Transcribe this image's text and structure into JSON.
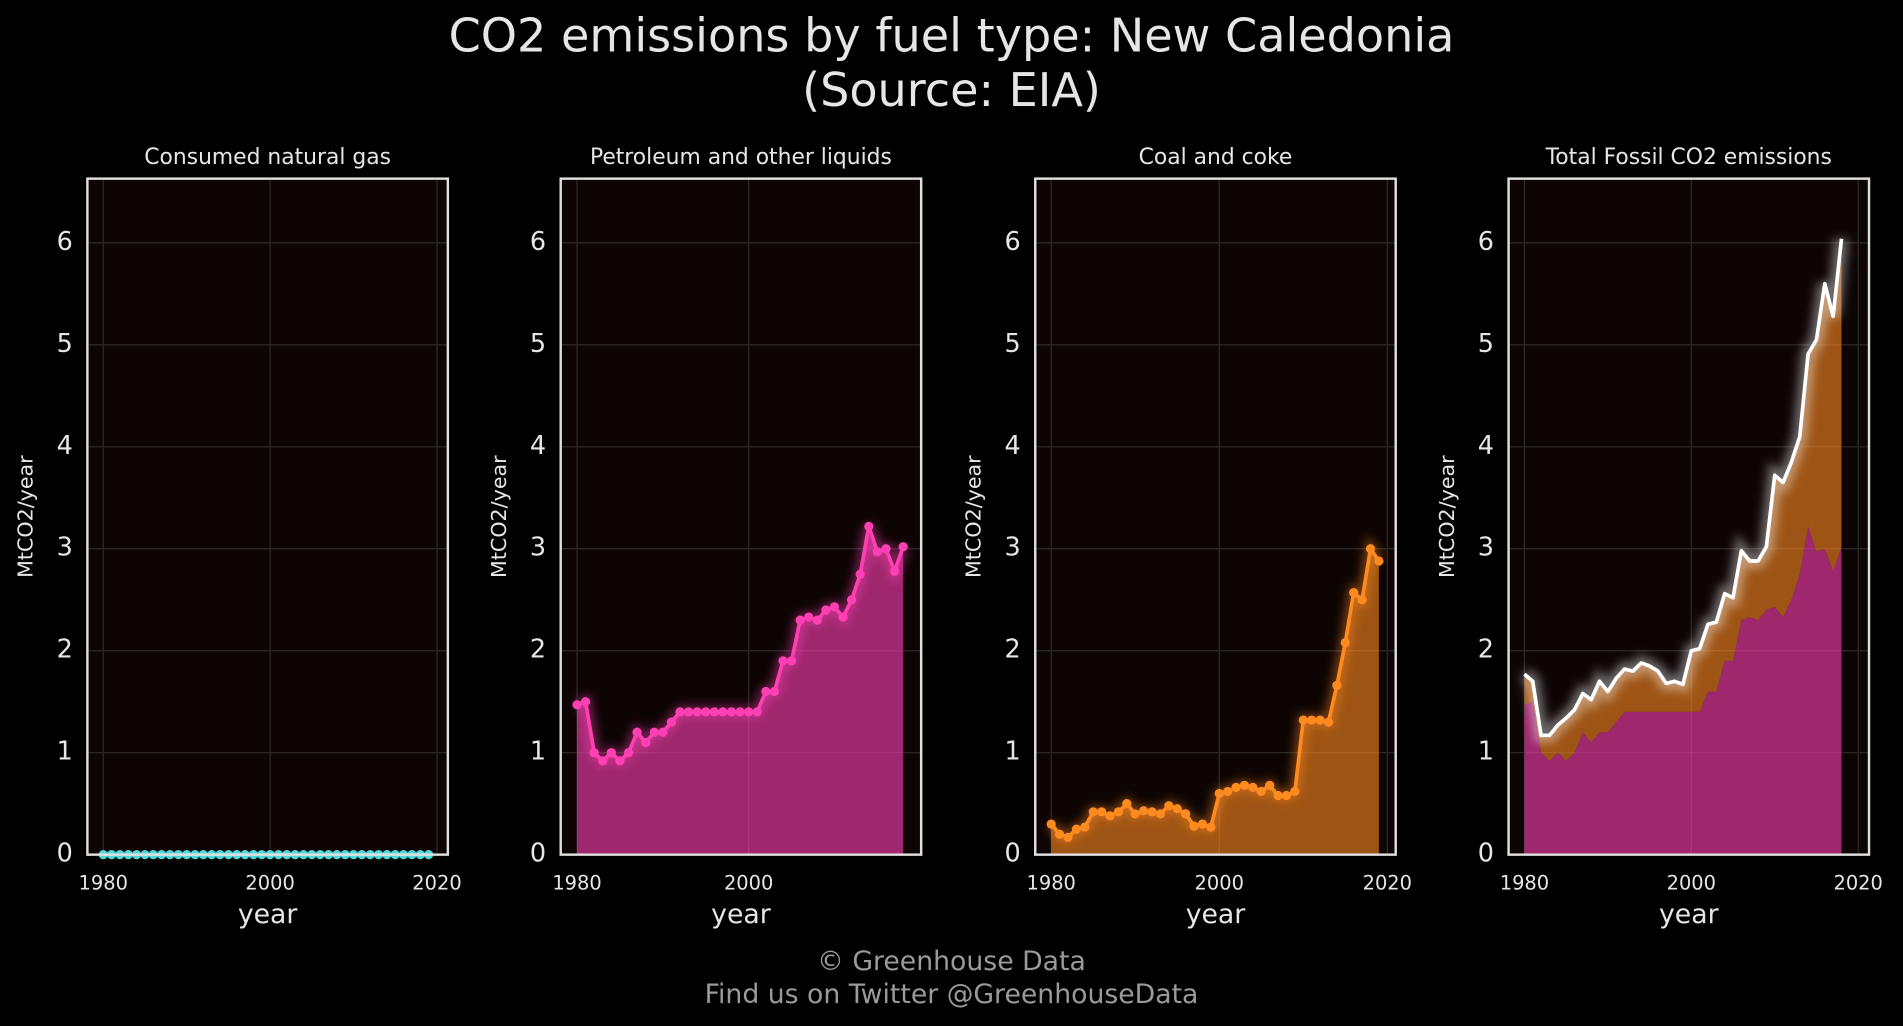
{
  "title": "CO2 emissions by fuel type: New Caledonia",
  "subtitle": "(Source: EIA)",
  "footer": [
    "© Greenhouse Data",
    "Find us on Twitter @GreenhouseData"
  ],
  "chart_data": [
    {
      "type": "area",
      "title": "Consumed natural gas",
      "xlabel": "year",
      "ylabel": "MtCO2/year",
      "x": [
        1980,
        1981,
        1982,
        1983,
        1984,
        1985,
        1986,
        1987,
        1988,
        1989,
        1990,
        1991,
        1992,
        1993,
        1994,
        1995,
        1996,
        1997,
        1998,
        1999,
        2000,
        2001,
        2002,
        2003,
        2004,
        2005,
        2006,
        2007,
        2008,
        2009,
        2010,
        2011,
        2012,
        2013,
        2014,
        2015,
        2016,
        2017,
        2018,
        2019
      ],
      "series": [
        {
          "color": "#4dd9d9",
          "values": [
            0,
            0,
            0,
            0,
            0,
            0,
            0,
            0,
            0,
            0,
            0,
            0,
            0,
            0,
            0,
            0,
            0,
            0,
            0,
            0,
            0,
            0,
            0,
            0,
            0,
            0,
            0,
            0,
            0,
            0,
            0,
            0,
            0,
            0,
            0,
            0,
            0,
            0,
            0,
            0
          ]
        }
      ],
      "xlim": [
        1978.1,
        2021.3
      ],
      "ylim": [
        0,
        6.63
      ],
      "xticks": [
        1980,
        2000,
        2020
      ],
      "yticks": [
        0,
        1,
        2,
        3,
        4,
        5,
        6
      ],
      "grid": true
    },
    {
      "type": "area",
      "title": "Petroleum and other liquids",
      "xlabel": "year",
      "ylabel": "MtCO2/year",
      "x": [
        1980,
        1981,
        1982,
        1983,
        1984,
        1985,
        1986,
        1987,
        1988,
        1989,
        1990,
        1991,
        1992,
        1993,
        1994,
        1995,
        1996,
        1997,
        1998,
        1999,
        2000,
        2001,
        2002,
        2003,
        2004,
        2005,
        2006,
        2007,
        2008,
        2009,
        2010,
        2011,
        2012,
        2013,
        2014,
        2015,
        2016,
        2017,
        2018
      ],
      "series": [
        {
          "color": "#ff3fb4",
          "values": [
            1.47,
            1.5,
            1.0,
            0.92,
            1.0,
            0.92,
            1.0,
            1.2,
            1.1,
            1.2,
            1.2,
            1.3,
            1.4,
            1.4,
            1.4,
            1.4,
            1.4,
            1.4,
            1.4,
            1.4,
            1.4,
            1.4,
            1.6,
            1.6,
            1.9,
            1.9,
            2.3,
            2.33,
            2.3,
            2.4,
            2.43,
            2.33,
            2.5,
            2.75,
            3.22,
            2.97,
            3.0,
            2.78,
            3.02
          ]
        }
      ],
      "xlim": [
        1978.1,
        2020.1
      ],
      "ylim": [
        0,
        6.63
      ],
      "xticks": [
        1980,
        2000
      ],
      "yticks": [
        0,
        1,
        2,
        3,
        4,
        5,
        6
      ],
      "grid": true
    },
    {
      "type": "area",
      "title": "Coal and coke",
      "xlabel": "year",
      "ylabel": "MtCO2/year",
      "x": [
        1980,
        1981,
        1982,
        1983,
        1984,
        1985,
        1986,
        1987,
        1988,
        1989,
        1990,
        1991,
        1992,
        1993,
        1994,
        1995,
        1996,
        1997,
        1998,
        1999,
        2000,
        2001,
        2002,
        2003,
        2004,
        2005,
        2006,
        2007,
        2008,
        2009,
        2010,
        2011,
        2012,
        2013,
        2014,
        2015,
        2016,
        2017,
        2018,
        2019
      ],
      "series": [
        {
          "color": "#ff8a1f",
          "values": [
            0.3,
            0.2,
            0.17,
            0.25,
            0.27,
            0.42,
            0.42,
            0.38,
            0.42,
            0.5,
            0.4,
            0.43,
            0.42,
            0.4,
            0.48,
            0.45,
            0.4,
            0.28,
            0.3,
            0.27,
            0.6,
            0.62,
            0.66,
            0.68,
            0.66,
            0.62,
            0.68,
            0.58,
            0.58,
            0.62,
            1.32,
            1.32,
            1.32,
            1.3,
            1.66,
            2.08,
            2.57,
            2.5,
            3.0,
            2.88
          ]
        }
      ],
      "xlim": [
        1978.1,
        2021.0
      ],
      "ylim": [
        0,
        6.63
      ],
      "xticks": [
        1980,
        2000,
        2020
      ],
      "yticks": [
        0,
        1,
        2,
        3,
        4,
        5,
        6
      ],
      "grid": true
    },
    {
      "type": "stacked",
      "title": "Total Fossil CO2 emissions",
      "xlabel": "year",
      "ylabel": "MtCO2/year",
      "x": [
        1980,
        1981,
        1982,
        1983,
        1984,
        1985,
        1986,
        1987,
        1988,
        1989,
        1990,
        1991,
        1992,
        1993,
        1994,
        1995,
        1996,
        1997,
        1998,
        1999,
        2000,
        2001,
        2002,
        2003,
        2004,
        2005,
        2006,
        2007,
        2008,
        2009,
        2010,
        2011,
        2012,
        2013,
        2014,
        2015,
        2016,
        2017,
        2018
      ],
      "series": [
        {
          "color": "#ffffff",
          "values": [
            1.77,
            1.7,
            1.17,
            1.17,
            1.27,
            1.34,
            1.42,
            1.58,
            1.52,
            1.7,
            1.6,
            1.73,
            1.82,
            1.8,
            1.88,
            1.85,
            1.8,
            1.68,
            1.7,
            1.67,
            2.0,
            2.02,
            2.26,
            2.28,
            2.56,
            2.52,
            2.98,
            2.88,
            2.88,
            3.02,
            3.72,
            3.65,
            3.85,
            4.1,
            4.91,
            5.05,
            5.6,
            5.28,
            6.04
          ]
        }
      ],
      "xlim": [
        1978.1,
        2021.3
      ],
      "ylim": [
        0,
        6.63
      ],
      "xticks": [
        1980,
        2000,
        2020
      ],
      "yticks": [
        0,
        1,
        2,
        3,
        4,
        5,
        6
      ],
      "grid": true
    }
  ]
}
